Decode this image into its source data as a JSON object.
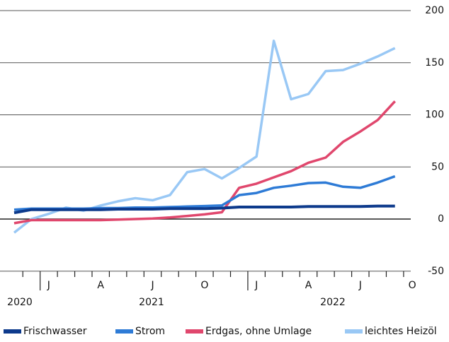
{
  "chart_data": {
    "type": "line",
    "categories": [
      null,
      null,
      "J",
      null,
      null,
      "A",
      null,
      null,
      "J",
      null,
      null,
      "O",
      null,
      null,
      "J",
      null,
      null,
      "A",
      null,
      null,
      "J",
      null,
      null,
      "O"
    ],
    "year_labels": [
      "2020",
      "2021",
      "2022"
    ],
    "series": [
      {
        "name": "Frischwasser",
        "color": "#0d3a8c",
        "values": [
          6,
          9,
          9,
          9,
          9,
          9,
          9.5,
          9.5,
          9.5,
          10,
          10,
          10,
          10.5,
          11.5,
          11.5,
          11.5,
          11.5,
          12,
          12,
          12,
          12,
          12.5,
          12.5,
          null
        ]
      },
      {
        "name": "Strom",
        "color": "#2e7bd6",
        "values": [
          9,
          10,
          10,
          10,
          10,
          10.5,
          10.5,
          11,
          11,
          11.5,
          12,
          12.5,
          13,
          23,
          25,
          30,
          32,
          34.5,
          35,
          31,
          30,
          35,
          41,
          null
        ]
      },
      {
        "name": "Erdgas, ohne Umlage",
        "color": "#e0476d",
        "values": [
          -4,
          -1,
          -1,
          -1,
          -1,
          -1,
          -0.5,
          0,
          0.5,
          1.5,
          3,
          4.5,
          6.5,
          30,
          34,
          40,
          46,
          54,
          59,
          74,
          84,
          95,
          113,
          null
        ]
      },
      {
        "name": "leichtes Heizöl",
        "color": "#99c8f5",
        "values": [
          -13,
          0,
          5,
          11,
          8,
          13,
          17,
          20,
          18,
          23,
          45,
          48,
          39,
          49,
          60,
          171,
          115,
          120,
          142,
          143,
          149,
          156,
          164,
          null
        ]
      }
    ],
    "ylim": [
      -50,
      200
    ],
    "yticks": [
      -50,
      0,
      50,
      100,
      150,
      200
    ],
    "grid": true
  }
}
